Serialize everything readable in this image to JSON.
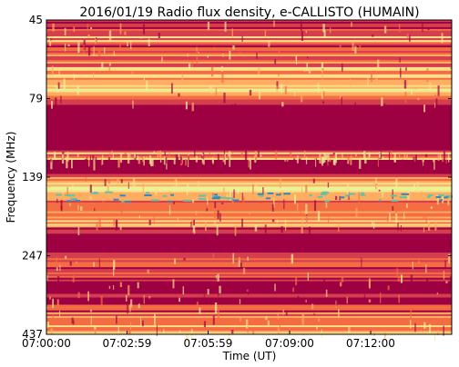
{
  "chart_data": {
    "type": "heatmap",
    "title": "2016/01/19  Radio flux density, e-CALLISTO (HUMAIN)",
    "xlabel": "Time (UT)",
    "ylabel": "Frequency (MHz)",
    "x_ticks": [
      "07:00:00",
      "07:02:59",
      "07:05:59",
      "07:09:00",
      "07:12:00"
    ],
    "x_range_seconds": [
      0,
      900
    ],
    "x_tick_seconds": [
      0,
      179,
      359,
      540,
      720
    ],
    "y_ticks": [
      "45",
      "79",
      "139",
      "247",
      "437"
    ],
    "y_range_mhz": [
      45,
      437
    ],
    "y_axis_inverted": true,
    "colormap": "Spectral",
    "colors": {
      "low": "#9e0142",
      "mid_low": "#d53e4f",
      "mid": "#f46d43",
      "mid_high": "#fdae61",
      "high": "#fee08b",
      "very_high": "#e6f598",
      "peak": "#66c2a5",
      "extreme": "#3288bd"
    }
  }
}
